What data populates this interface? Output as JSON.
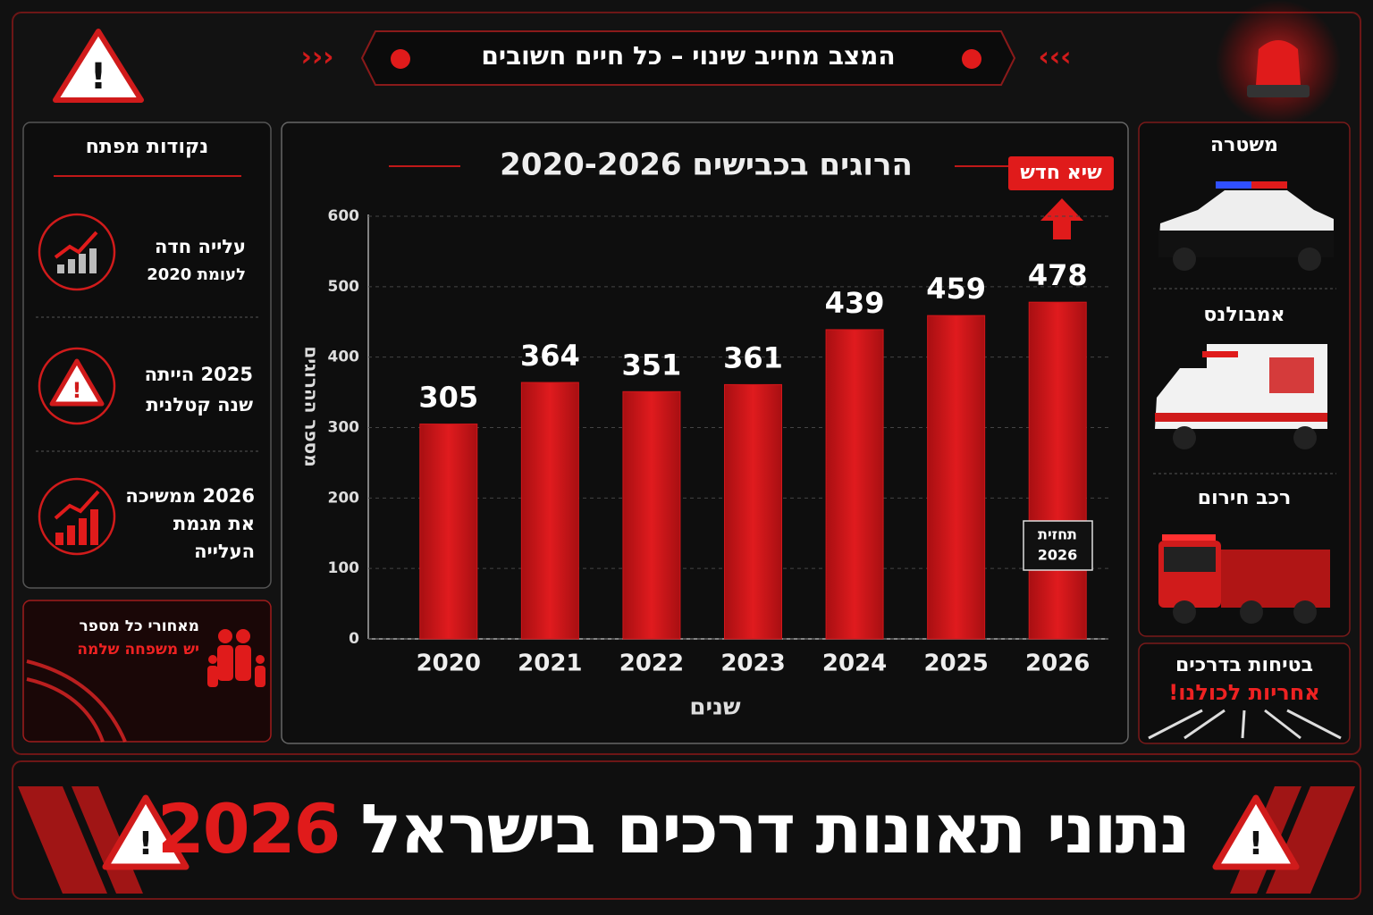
{
  "banner": "המצב מחייב שינוי – כל חיים חשובים",
  "key_points": {
    "title": "נקודות מפתח",
    "items": [
      [
        "עלייה חדה",
        "לעומת 2020"
      ],
      [
        "2025 הייתה",
        "שנה קטלנית"
      ],
      [
        "2026 ממשיכה",
        "את מגמת",
        "העלייה"
      ]
    ]
  },
  "family_note": [
    "מאחורי כל מספר",
    "יש משפחה שלמה"
  ],
  "vehicles": [
    "משטרה",
    "אמבולנס",
    "רכב חירום"
  ],
  "safety": [
    "בטיחות בדרכים",
    "אחריות לכולנו!"
  ],
  "footer": {
    "title": "נתוני תאונות דרכים בישראל",
    "year": "2026"
  },
  "chart_data": {
    "type": "bar",
    "title": "הרוגים בכבישים 2020-2026",
    "x_label": "שנים",
    "y_label": "מספר ההרוגים",
    "categories": [
      "2020",
      "2021",
      "2022",
      "2023",
      "2024",
      "2025",
      "2026"
    ],
    "values": [
      305,
      364,
      351,
      361,
      439,
      459,
      478
    ],
    "color": "#d2161a",
    "ylim": [
      0,
      600
    ],
    "yticks": [
      0,
      100,
      200,
      300,
      400,
      500,
      600
    ],
    "grid": true,
    "peak_label": "שיא חדש",
    "forecast_label": [
      "תחזית",
      "2026"
    ]
  }
}
